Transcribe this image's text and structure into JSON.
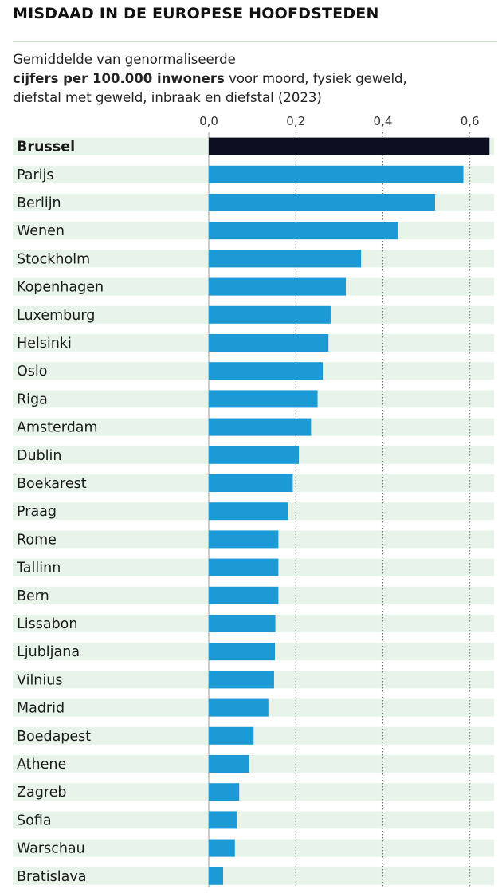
{
  "header": {
    "title": "MISDAAD IN DE EUROPESE HOOFDSTEDEN",
    "subtitle_line1": "Gemiddelde van genormaliseerde",
    "subtitle_bold": "cijfers per 100.000 inwoners",
    "subtitle_rest": " voor moord, fysiek geweld,",
    "subtitle_line3": "diefstal met geweld, inbraak en diefstal (2023)"
  },
  "colors": {
    "highlight_bar": "#0c0f22",
    "bar": "#1b9ad6",
    "stripe": "#e8f3ea",
    "gridline": "#6d6d6d"
  },
  "chart_data": {
    "type": "bar",
    "orientation": "horizontal",
    "categories": [
      "Brussel",
      "Parijs",
      "Berlijn",
      "Wenen",
      "Stockholm",
      "Kopenhagen",
      "Luxemburg",
      "Helsinki",
      "Oslo",
      "Riga",
      "Amsterdam",
      "Dublin",
      "Boekarest",
      "Praag",
      "Rome",
      "Tallinn",
      "Bern",
      "Lissabon",
      "Ljubljana",
      "Vilnius",
      "Madrid",
      "Boedapest",
      "Athene",
      "Zagreb",
      "Sofia",
      "Warschau",
      "Bratislava"
    ],
    "values": [
      0.645,
      0.585,
      0.52,
      0.435,
      0.35,
      0.315,
      0.28,
      0.275,
      0.262,
      0.25,
      0.235,
      0.207,
      0.193,
      0.183,
      0.16,
      0.16,
      0.16,
      0.153,
      0.152,
      0.15,
      0.137,
      0.103,
      0.093,
      0.07,
      0.064,
      0.06,
      0.033
    ],
    "highlight": "Brussel",
    "xlim": [
      0,
      0.65
    ],
    "xticks": [
      0,
      0.2,
      0.4,
      0.6
    ],
    "xtick_labels": [
      "0,0",
      "0,2",
      "0,4",
      "0,6"
    ],
    "grid": "vertical dotted",
    "title": "MISDAAD IN DE EUROPESE HOOFDSTEDEN",
    "xlabel": "",
    "ylabel": ""
  }
}
